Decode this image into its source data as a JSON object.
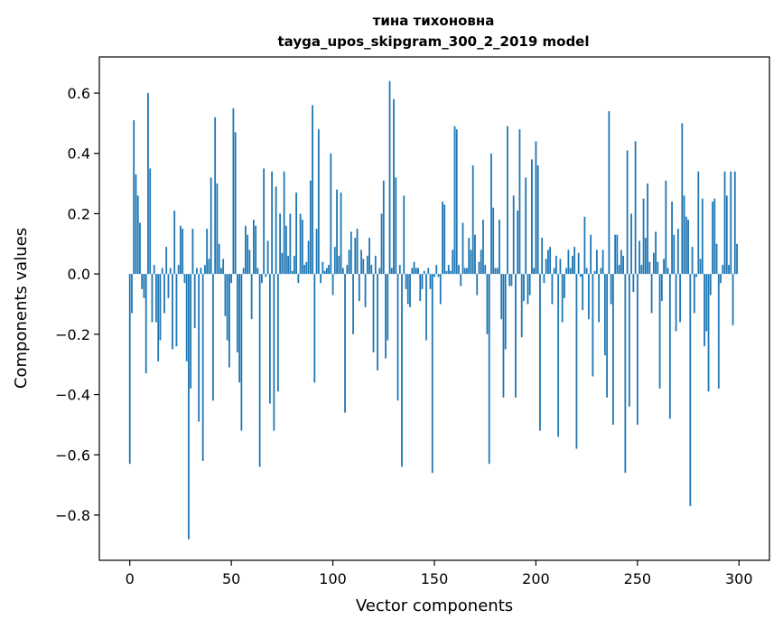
{
  "chart_data": {
    "type": "bar",
    "title": "тина тихоновна",
    "subtitle": "tayga_upos_skipgram_300_2_2019 model",
    "xlabel": "Vector components",
    "ylabel": "Components values",
    "xlim": [
      -15,
      315
    ],
    "ylim": [
      -0.95,
      0.72
    ],
    "x_ticks": [
      0,
      50,
      100,
      150,
      200,
      250,
      300
    ],
    "x_tick_labels": [
      "0",
      "50",
      "100",
      "150",
      "200",
      "250",
      "300"
    ],
    "y_ticks": [
      0.6,
      0.4,
      0.2,
      0.0,
      -0.2,
      -0.4,
      -0.6,
      -0.8
    ],
    "y_tick_labels": [
      "0.6",
      "0.4",
      "0.2",
      "0.0",
      "−0.2",
      "−0.4",
      "−0.6",
      "−0.8"
    ],
    "bar_color": "#1f77b4",
    "grid": false,
    "legend": "none",
    "values": [
      -0.63,
      -0.13,
      0.51,
      0.33,
      0.26,
      0.17,
      -0.05,
      -0.08,
      -0.33,
      0.6,
      0.35,
      -0.16,
      0.03,
      -0.16,
      -0.29,
      -0.22,
      0.02,
      -0.13,
      0.09,
      -0.08,
      0.02,
      -0.25,
      0.21,
      -0.24,
      0.03,
      0.16,
      0.15,
      -0.03,
      -0.29,
      -0.88,
      -0.38,
      0.15,
      -0.18,
      0.02,
      -0.49,
      0.02,
      -0.62,
      0.03,
      0.15,
      0.05,
      0.32,
      -0.42,
      0.52,
      0.3,
      0.1,
      0.02,
      0.05,
      -0.14,
      -0.22,
      -0.31,
      -0.03,
      0.55,
      0.47,
      -0.26,
      -0.36,
      -0.52,
      0.02,
      0.16,
      0.13,
      0.08,
      -0.15,
      0.18,
      0.16,
      0.02,
      -0.64,
      -0.03,
      0.35,
      -0.01,
      0.11,
      -0.43,
      0.34,
      -0.52,
      0.29,
      -0.39,
      0.2,
      0.07,
      0.34,
      0.16,
      0.06,
      0.2,
      0.01,
      0.06,
      0.27,
      -0.03,
      0.2,
      0.18,
      0.03,
      0.04,
      0.11,
      0.31,
      0.56,
      -0.36,
      0.15,
      0.48,
      -0.03,
      0.04,
      0.01,
      0.02,
      0.03,
      0.4,
      -0.07,
      0.09,
      0.28,
      0.06,
      0.27,
      0.02,
      -0.46,
      0.03,
      0.08,
      0.14,
      -0.2,
      0.12,
      0.15,
      -0.09,
      0.08,
      0.05,
      -0.11,
      0.06,
      0.12,
      0.03,
      -0.26,
      0.06,
      -0.32,
      0.02,
      0.2,
      0.31,
      -0.28,
      -0.22,
      0.64,
      0.02,
      0.58,
      0.32,
      -0.42,
      0.03,
      -0.64,
      0.26,
      -0.05,
      -0.1,
      -0.11,
      0.02,
      0.04,
      0.02,
      0.02,
      -0.09,
      -0.05,
      0.01,
      -0.22,
      0.02,
      -0.05,
      -0.66,
      -0.01,
      0.03,
      -0.01,
      -0.1,
      0.24,
      0.23,
      0.01,
      0.03,
      0.01,
      0.08,
      0.49,
      0.48,
      0.03,
      -0.04,
      0.17,
      0.02,
      0.02,
      0.12,
      0.08,
      0.36,
      0.13,
      -0.07,
      0.04,
      0.08,
      0.18,
      0.03,
      -0.2,
      -0.63,
      0.4,
      0.22,
      0.02,
      0.02,
      0.18,
      -0.15,
      -0.41,
      -0.25,
      0.49,
      -0.04,
      -0.04,
      0.26,
      -0.41,
      0.21,
      0.48,
      -0.21,
      -0.09,
      0.32,
      -0.1,
      -0.07,
      0.38,
      0.02,
      0.44,
      0.36,
      -0.52,
      0.12,
      -0.03,
      0.05,
      0.08,
      0.09,
      -0.1,
      0.02,
      0.06,
      -0.54,
      0.05,
      -0.16,
      -0.08,
      0.02,
      0.08,
      0.02,
      0.06,
      0.09,
      -0.58,
      0.07,
      -0.01,
      -0.12,
      0.19,
      0.02,
      -0.15,
      0.13,
      -0.34,
      0.01,
      0.08,
      -0.16,
      0.02,
      0.08,
      -0.27,
      -0.41,
      0.54,
      -0.1,
      -0.5,
      0.13,
      0.13,
      0.03,
      0.08,
      0.06,
      -0.66,
      0.41,
      -0.44,
      0.2,
      -0.06,
      0.44,
      -0.5,
      0.11,
      0.03,
      0.25,
      0.12,
      0.3,
      0.04,
      -0.13,
      0.07,
      0.14,
      0.04,
      -0.38,
      -0.09,
      0.05,
      0.31,
      0.02,
      -0.48,
      0.24,
      0.13,
      -0.19,
      0.15,
      -0.16,
      0.5,
      0.26,
      0.19,
      0.18,
      -0.77,
      0.09,
      -0.13,
      -0.01,
      0.34,
      0.05,
      0.25,
      -0.24,
      -0.19,
      -0.39,
      -0.07,
      0.24,
      0.25,
      0.1,
      -0.38,
      -0.03,
      0.03,
      0.34,
      0.26,
      0.03,
      0.34,
      -0.17,
      0.34,
      0.1
    ]
  }
}
